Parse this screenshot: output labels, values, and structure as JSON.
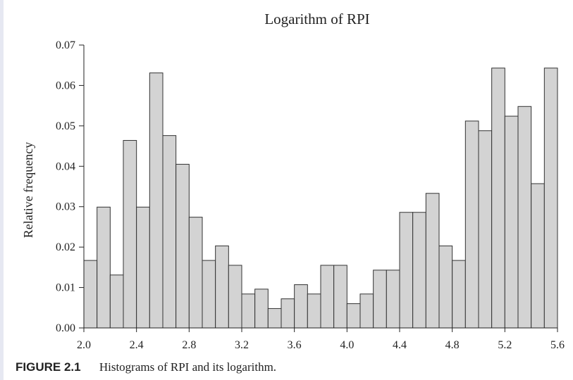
{
  "chart_data": {
    "type": "bar",
    "title": "Logarithm of RPI",
    "xlabel": "",
    "ylabel": "Relative frequency",
    "xlim": [
      2.0,
      5.6
    ],
    "ylim": [
      0.0,
      0.07
    ],
    "x_ticks": [
      "2.0",
      "2.4",
      "2.8",
      "3.2",
      "3.6",
      "4.0",
      "4.4",
      "4.8",
      "5.2",
      "5.6"
    ],
    "y_ticks": [
      "0.00",
      "0.01",
      "0.02",
      "0.03",
      "0.04",
      "0.05",
      "0.06",
      "0.07"
    ],
    "grid": false,
    "bar_color": "#d3d3d3",
    "edge_color": "#333333",
    "bins": [
      {
        "x0": 2.0,
        "x1": 2.1,
        "value": 0.0167
      },
      {
        "x0": 2.1,
        "x1": 2.2,
        "value": 0.0299
      },
      {
        "x0": 2.2,
        "x1": 2.3,
        "value": 0.0131
      },
      {
        "x0": 2.3,
        "x1": 2.4,
        "value": 0.0464
      },
      {
        "x0": 2.4,
        "x1": 2.5,
        "value": 0.0299
      },
      {
        "x0": 2.5,
        "x1": 2.6,
        "value": 0.0631
      },
      {
        "x0": 2.6,
        "x1": 2.7,
        "value": 0.0476
      },
      {
        "x0": 2.7,
        "x1": 2.8,
        "value": 0.0405
      },
      {
        "x0": 2.8,
        "x1": 2.9,
        "value": 0.0274
      },
      {
        "x0": 2.9,
        "x1": 3.0,
        "value": 0.0167
      },
      {
        "x0": 3.0,
        "x1": 3.1,
        "value": 0.0203
      },
      {
        "x0": 3.1,
        "x1": 3.2,
        "value": 0.0155
      },
      {
        "x0": 3.2,
        "x1": 3.3,
        "value": 0.0084
      },
      {
        "x0": 3.3,
        "x1": 3.4,
        "value": 0.0096
      },
      {
        "x0": 3.4,
        "x1": 3.5,
        "value": 0.0048
      },
      {
        "x0": 3.5,
        "x1": 3.6,
        "value": 0.0072
      },
      {
        "x0": 3.6,
        "x1": 3.7,
        "value": 0.0107
      },
      {
        "x0": 3.7,
        "x1": 3.8,
        "value": 0.0084
      },
      {
        "x0": 3.8,
        "x1": 3.9,
        "value": 0.0155
      },
      {
        "x0": 3.9,
        "x1": 4.0,
        "value": 0.0155
      },
      {
        "x0": 4.0,
        "x1": 4.1,
        "value": 0.006
      },
      {
        "x0": 4.1,
        "x1": 4.2,
        "value": 0.0084
      },
      {
        "x0": 4.2,
        "x1": 4.3,
        "value": 0.0143
      },
      {
        "x0": 4.3,
        "x1": 4.4,
        "value": 0.0143
      },
      {
        "x0": 4.4,
        "x1": 4.5,
        "value": 0.0286
      },
      {
        "x0": 4.5,
        "x1": 4.6,
        "value": 0.0286
      },
      {
        "x0": 4.6,
        "x1": 4.7,
        "value": 0.0333
      },
      {
        "x0": 4.7,
        "x1": 4.8,
        "value": 0.0203
      },
      {
        "x0": 4.8,
        "x1": 4.9,
        "value": 0.0167
      },
      {
        "x0": 4.9,
        "x1": 5.0,
        "value": 0.0512
      },
      {
        "x0": 5.0,
        "x1": 5.1,
        "value": 0.0488
      },
      {
        "x0": 5.1,
        "x1": 5.2,
        "value": 0.0643
      },
      {
        "x0": 5.2,
        "x1": 5.3,
        "value": 0.0524
      },
      {
        "x0": 5.3,
        "x1": 5.4,
        "value": 0.0548
      },
      {
        "x0": 5.4,
        "x1": 5.5,
        "value": 0.0357
      },
      {
        "x0": 5.5,
        "x1": 5.6,
        "value": 0.0643
      }
    ]
  },
  "caption": {
    "label": "FIGURE 2.1",
    "text": "Histograms of RPI and its logarithm."
  }
}
